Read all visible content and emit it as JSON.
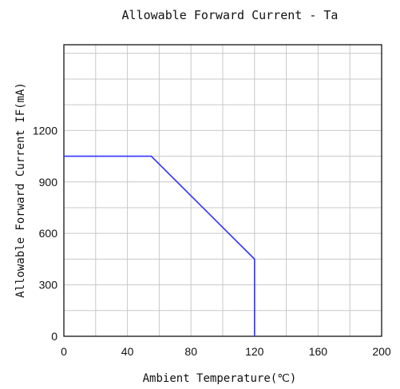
{
  "chart_data": {
    "type": "line",
    "title": "Allowable Forward Current - Ta",
    "xlabel": "Ambient Temperature(℃)",
    "ylabel": "Allowable Forward Current IF(mA)",
    "xlim": [
      0,
      200
    ],
    "ylim": [
      0,
      1700
    ],
    "x_ticks": [
      0,
      40,
      80,
      120,
      160,
      200
    ],
    "x_tick_labels": [
      "0",
      "40",
      "80",
      "120",
      "160",
      "200"
    ],
    "y_ticks": [
      0,
      300,
      600,
      900,
      1200
    ],
    "y_tick_labels": [
      "0",
      "300",
      "600",
      "900",
      "1200"
    ],
    "grid": true,
    "series": [
      {
        "color": "#3333ff",
        "x": [
          0,
          55,
          120,
          120
        ],
        "y": [
          1050,
          1050,
          450,
          0
        ]
      }
    ]
  }
}
